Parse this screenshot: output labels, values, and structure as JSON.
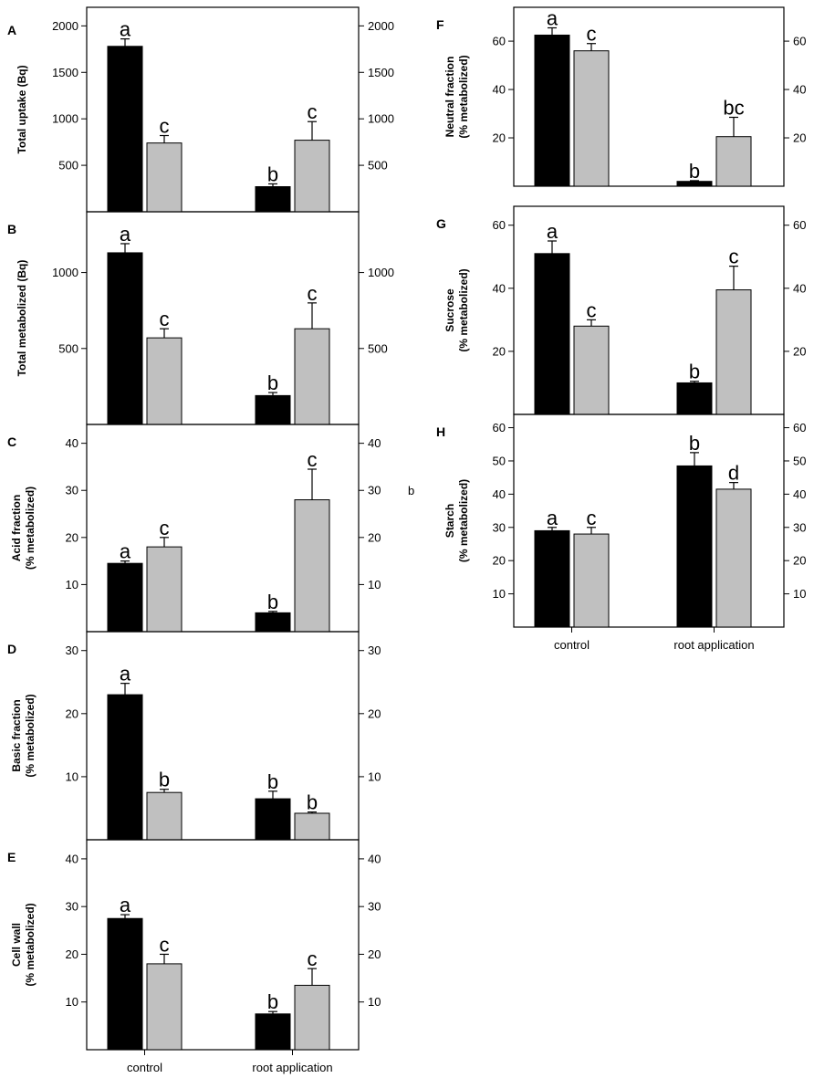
{
  "figure": {
    "stray_label": "b",
    "x_categories": [
      "control",
      "root application"
    ]
  },
  "colors": {
    "series_1": "#000000",
    "series_2": "#c0c0c0",
    "axis": "#000000"
  },
  "chart_data": [
    {
      "type": "bar",
      "id": "A",
      "letter": "A",
      "ylabel_lines": [
        "Total uptake (Bq)"
      ],
      "ylim": [
        0,
        2200
      ],
      "yticks": [
        500,
        1000,
        1500,
        2000
      ],
      "categories": [
        "control",
        "root application"
      ],
      "series": [
        {
          "name": "series-1",
          "values": [
            1780,
            270
          ],
          "errors": [
            80,
            30
          ],
          "letters": [
            "a",
            "b"
          ]
        },
        {
          "name": "series-2",
          "values": [
            740,
            770
          ],
          "errors": [
            80,
            200
          ],
          "letters": [
            "c",
            "c"
          ]
        }
      ]
    },
    {
      "type": "bar",
      "id": "B",
      "letter": "B",
      "ylabel_lines": [
        "Total metabolized (Bq)"
      ],
      "ylim": [
        0,
        1400
      ],
      "yticks": [
        500,
        1000
      ],
      "categories": [
        "control",
        "root application"
      ],
      "series": [
        {
          "name": "series-1",
          "values": [
            1130,
            190
          ],
          "errors": [
            60,
            20
          ],
          "letters": [
            "a",
            "b"
          ]
        },
        {
          "name": "series-2",
          "values": [
            570,
            630
          ],
          "errors": [
            60,
            170
          ],
          "letters": [
            "c",
            "c"
          ]
        }
      ]
    },
    {
      "type": "bar",
      "id": "C",
      "letter": "C",
      "ylabel_lines": [
        "Acid fraction",
        "(% metabolized)"
      ],
      "ylim": [
        0,
        44
      ],
      "yticks": [
        10,
        20,
        30,
        40
      ],
      "categories": [
        "control",
        "root application"
      ],
      "series": [
        {
          "name": "series-1",
          "values": [
            14.5,
            4
          ],
          "errors": [
            0.5,
            0.3
          ],
          "letters": [
            "a",
            "b"
          ]
        },
        {
          "name": "series-2",
          "values": [
            18,
            28
          ],
          "errors": [
            2,
            6.5
          ],
          "letters": [
            "c",
            "c"
          ]
        }
      ]
    },
    {
      "type": "bar",
      "id": "D",
      "letter": "D",
      "ylabel_lines": [
        "Basic fraction",
        "(% metabolized)"
      ],
      "ylim": [
        0,
        33
      ],
      "yticks": [
        10,
        20,
        30
      ],
      "categories": [
        "control",
        "root application"
      ],
      "series": [
        {
          "name": "series-1",
          "values": [
            23,
            6.5
          ],
          "errors": [
            1.8,
            1.2
          ],
          "letters": [
            "a",
            "b"
          ]
        },
        {
          "name": "series-2",
          "values": [
            7.5,
            4.2
          ],
          "errors": [
            0.5,
            0.2
          ],
          "letters": [
            "b",
            "b"
          ]
        }
      ]
    },
    {
      "type": "bar",
      "id": "E",
      "letter": "E",
      "ylabel_lines": [
        "Cell wall",
        "(% metabolized)"
      ],
      "ylim": [
        0,
        44
      ],
      "yticks": [
        10,
        20,
        30,
        40
      ],
      "categories": [
        "control",
        "root application"
      ],
      "series": [
        {
          "name": "series-1",
          "values": [
            27.5,
            7.5
          ],
          "errors": [
            0.8,
            0.5
          ],
          "letters": [
            "a",
            "b"
          ]
        },
        {
          "name": "series-2",
          "values": [
            18,
            13.5
          ],
          "errors": [
            2,
            3.5
          ],
          "letters": [
            "c",
            "c"
          ]
        }
      ]
    },
    {
      "type": "bar",
      "id": "F",
      "letter": "F",
      "ylabel_lines": [
        "Neutral fraction",
        "(% metabolized)"
      ],
      "ylim": [
        0,
        74
      ],
      "yticks": [
        20,
        40,
        60
      ],
      "categories": [
        "control",
        "root application"
      ],
      "series": [
        {
          "name": "series-1",
          "values": [
            62.5,
            2
          ],
          "errors": [
            3,
            0.3
          ],
          "letters": [
            "a",
            "b"
          ]
        },
        {
          "name": "series-2",
          "values": [
            56,
            20.5
          ],
          "errors": [
            3,
            8
          ],
          "letters": [
            "c",
            "bc"
          ]
        }
      ]
    },
    {
      "type": "bar",
      "id": "G",
      "letter": "G",
      "ylabel_lines": [
        "Sucrose",
        "(% metabolized)"
      ],
      "ylim": [
        0,
        66
      ],
      "yticks": [
        20,
        40,
        60
      ],
      "categories": [
        "control",
        "root application"
      ],
      "series": [
        {
          "name": "series-1",
          "values": [
            51,
            10
          ],
          "errors": [
            4,
            0.5
          ],
          "letters": [
            "a",
            "b"
          ]
        },
        {
          "name": "series-2",
          "values": [
            28,
            39.5
          ],
          "errors": [
            2,
            7.5
          ],
          "letters": [
            "c",
            "c"
          ]
        }
      ]
    },
    {
      "type": "bar",
      "id": "H",
      "letter": "H",
      "ylabel_lines": [
        "Starch",
        "(% metabolized)"
      ],
      "ylim": [
        0,
        64
      ],
      "yticks": [
        10,
        20,
        30,
        40,
        50,
        60
      ],
      "categories": [
        "control",
        "root application"
      ],
      "series": [
        {
          "name": "series-1",
          "values": [
            29,
            48.5
          ],
          "errors": [
            1,
            4
          ],
          "letters": [
            "a",
            "b"
          ]
        },
        {
          "name": "series-2",
          "values": [
            28,
            41.5
          ],
          "errors": [
            2,
            2
          ],
          "letters": [
            "c",
            "d"
          ]
        }
      ]
    }
  ]
}
